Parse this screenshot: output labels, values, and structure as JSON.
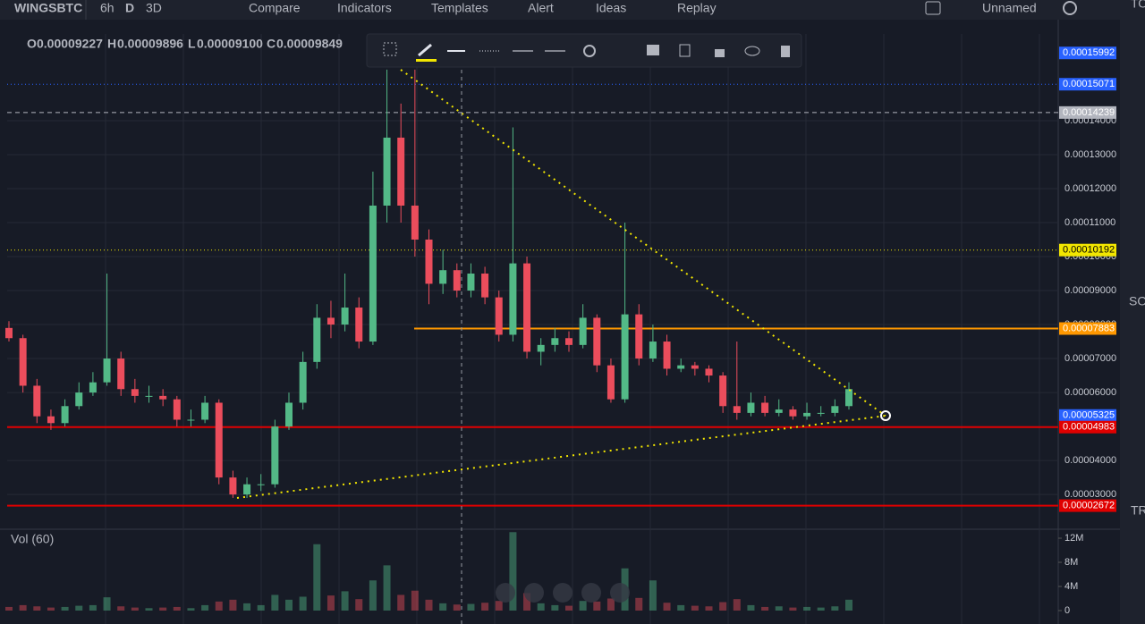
{
  "toolbar": {
    "symbol": "WINGSBTC",
    "intervals": [
      "6h",
      "D",
      "3D"
    ],
    "buttons": [
      "Compare",
      "Indicators",
      "Templates",
      "Alert",
      "Ideas",
      "Replay"
    ],
    "layout_name": "Unnamed"
  },
  "legend": {
    "items": [
      {
        "key": "O",
        "value": "0.00009227"
      },
      {
        "key": "H",
        "value": "0.00009896"
      },
      {
        "key": "L",
        "value": "0.00009100"
      },
      {
        "key": "C",
        "value": "0.00009849"
      }
    ]
  },
  "chart": {
    "type": "candlestick",
    "up_color": "#53b987",
    "down_color": "#eb4d5c",
    "grid": true,
    "ylim": [
      2.03e-05,
      0.0001655
    ],
    "yticks": [
      {
        "value": 3e-05,
        "label": "0.00003000"
      },
      {
        "value": 4e-05,
        "label": "0.00004000"
      },
      {
        "value": 5e-05,
        "label": "0.00005000"
      },
      {
        "value": 6e-05,
        "label": "0.00006000"
      },
      {
        "value": 7e-05,
        "label": "0.00007000"
      },
      {
        "value": 8e-05,
        "label": "0.00008000"
      },
      {
        "value": 9e-05,
        "label": "0.00009000"
      },
      {
        "value": 0.0001,
        "label": "0.00010000"
      },
      {
        "value": 0.00011,
        "label": "0.00011000"
      },
      {
        "value": 0.00012,
        "label": "0.00012000"
      },
      {
        "value": 0.00013,
        "label": "0.00013000"
      },
      {
        "value": 0.00014,
        "label": "0.00014000"
      }
    ],
    "price_lines": [
      {
        "value": 0.00015992,
        "label": "0.00015992",
        "color": "#2962ff",
        "style": "none"
      },
      {
        "value": 0.00015071,
        "label": "0.00015071",
        "color": "#2962ff",
        "style": "dotted"
      },
      {
        "value": 0.00014239,
        "label": "0.00014239",
        "color": "#b2b5be",
        "style": "dashed"
      },
      {
        "value": 0.00010192,
        "label": "0.00010192",
        "color": "#f2e600",
        "style": "dotted"
      },
      {
        "value": 7.883e-05,
        "label": "0.00007883",
        "color": "#ff9800",
        "style": "solid"
      },
      {
        "value": 5.325e-05,
        "label": "0.00005325",
        "color": "#2962ff",
        "style": "none"
      },
      {
        "value": 4.983e-05,
        "label": "0.00004983",
        "color": "#e00000",
        "style": "solid"
      },
      {
        "value": 2.672e-05,
        "label": "0.00002672",
        "color": "#e00000",
        "style": "solid"
      }
    ],
    "candles": [
      [
        7.9e-05,
        8.1e-05,
        7.5e-05,
        7.6e-05
      ],
      [
        7.6e-05,
        7.7e-05,
        6e-05,
        6.2e-05
      ],
      [
        6.2e-05,
        6.4e-05,
        5.1e-05,
        5.3e-05
      ],
      [
        5.3e-05,
        5.5e-05,
        4.9e-05,
        5.1e-05
      ],
      [
        5.1e-05,
        5.8e-05,
        5e-05,
        5.6e-05
      ],
      [
        5.6e-05,
        6.3e-05,
        5.5e-05,
        6e-05
      ],
      [
        6e-05,
        6.6e-05,
        5.9e-05,
        6.3e-05
      ],
      [
        6.3e-05,
        9.5e-05,
        6.2e-05,
        7e-05
      ],
      [
        7e-05,
        7.2e-05,
        5.9e-05,
        6.1e-05
      ],
      [
        6.1e-05,
        6.4e-05,
        5.7e-05,
        5.9e-05
      ],
      [
        5.9e-05,
        6.2e-05,
        5.7e-05,
        5.9e-05
      ],
      [
        5.9e-05,
        6.1e-05,
        5.6e-05,
        5.8e-05
      ],
      [
        5.8e-05,
        5.9e-05,
        5e-05,
        5.2e-05
      ],
      [
        5.2e-05,
        5.5e-05,
        5e-05,
        5.2e-05
      ],
      [
        5.2e-05,
        5.9e-05,
        5.1e-05,
        5.7e-05
      ],
      [
        5.7e-05,
        5.8e-05,
        3.3e-05,
        3.5e-05
      ],
      [
        3.5e-05,
        3.7e-05,
        2.9e-05,
        3e-05
      ],
      [
        3e-05,
        3.5e-05,
        2.9e-05,
        3.3e-05
      ],
      [
        3.3e-05,
        3.6e-05,
        3.1e-05,
        3.3e-05
      ],
      [
        3.3e-05,
        5.2e-05,
        3.2e-05,
        5e-05
      ],
      [
        5e-05,
        6e-05,
        4.9e-05,
        5.7e-05
      ],
      [
        5.7e-05,
        7.2e-05,
        5.5e-05,
        6.9e-05
      ],
      [
        6.9e-05,
        8.6e-05,
        6.7e-05,
        8.2e-05
      ],
      [
        8.2e-05,
        8.7e-05,
        7.6e-05,
        8e-05
      ],
      [
        8e-05,
        9.5e-05,
        7.8e-05,
        8.5e-05
      ],
      [
        8.5e-05,
        8.8e-05,
        7.3e-05,
        7.5e-05
      ],
      [
        7.5e-05,
        0.000125,
        7.4e-05,
        0.000115
      ],
      [
        0.000115,
        0.000155,
        0.00011,
        0.000135
      ],
      [
        0.000135,
        0.000145,
        0.00011,
        0.000115
      ],
      [
        0.000115,
        0.000155,
        0.0001,
        0.000105
      ],
      [
        0.000105,
        0.000108,
        8.6e-05,
        9.2e-05
      ],
      [
        9.2e-05,
        0.000102,
        8.9e-05,
        9.6e-05
      ],
      [
        9.6e-05,
        9.8e-05,
        8.8e-05,
        9e-05
      ],
      [
        9e-05,
        9.8e-05,
        8.8e-05,
        9.5e-05
      ],
      [
        9.5e-05,
        9.7e-05,
        8.6e-05,
        8.8e-05
      ],
      [
        8.8e-05,
        9e-05,
        7.5e-05,
        7.7e-05
      ],
      [
        7.7e-05,
        0.000138,
        7.5e-05,
        9.8e-05
      ],
      [
        9.8e-05,
        0.0001,
        7e-05,
        7.2e-05
      ],
      [
        7.2e-05,
        7.6e-05,
        6.8e-05,
        7.4e-05
      ],
      [
        7.4e-05,
        7.9e-05,
        7.2e-05,
        7.6e-05
      ],
      [
        7.6e-05,
        7.8e-05,
        7.2e-05,
        7.4e-05
      ],
      [
        7.4e-05,
        8.6e-05,
        7.3e-05,
        8.2e-05
      ],
      [
        8.2e-05,
        8.3e-05,
        6.6e-05,
        6.8e-05
      ],
      [
        6.8e-05,
        7e-05,
        5.7e-05,
        5.8e-05
      ],
      [
        5.8e-05,
        0.00011,
        5.7e-05,
        8.3e-05
      ],
      [
        8.3e-05,
        8.6e-05,
        6.8e-05,
        7e-05
      ],
      [
        7e-05,
        8e-05,
        6.9e-05,
        7.5e-05
      ],
      [
        7.5e-05,
        7.7e-05,
        6.5e-05,
        6.7e-05
      ],
      [
        6.7e-05,
        7e-05,
        6.6e-05,
        6.8e-05
      ],
      [
        6.8e-05,
        6.9e-05,
        6.5e-05,
        6.7e-05
      ],
      [
        6.7e-05,
        6.8e-05,
        6.3e-05,
        6.5e-05
      ],
      [
        6.5e-05,
        6.6e-05,
        5.4e-05,
        5.6e-05
      ],
      [
        5.6e-05,
        7.5e-05,
        5.2e-05,
        5.4e-05
      ],
      [
        5.4e-05,
        6e-05,
        5.3e-05,
        5.7e-05
      ],
      [
        5.7e-05,
        5.9e-05,
        5.3e-05,
        5.4e-05
      ],
      [
        5.4e-05,
        5.8e-05,
        5.3e-05,
        5.5e-05
      ],
      [
        5.5e-05,
        5.6e-05,
        5.2e-05,
        5.3e-05
      ],
      [
        5.3e-05,
        5.7e-05,
        5.2e-05,
        5.4e-05
      ],
      [
        5.4e-05,
        5.6e-05,
        5.3e-05,
        5.4e-05
      ],
      [
        5.4e-05,
        5.8e-05,
        5.3e-05,
        5.6e-05
      ],
      [
        5.6e-05,
        6.3e-05,
        5.5e-05,
        6.1e-05
      ]
    ]
  },
  "volume": {
    "label": "Vol (60)",
    "ylim": [
      -1040000,
      13040000
    ],
    "yticks": [
      {
        "value": 12000000,
        "label": "12M"
      },
      {
        "value": 8000000,
        "label": "8M"
      },
      {
        "value": 4000000,
        "label": "4M"
      },
      0
    ],
    "values": [
      600000,
      900000,
      700000,
      500000,
      600000,
      800000,
      900000,
      2200000,
      700000,
      500000,
      400000,
      500000,
      600000,
      400000,
      900000,
      1500000,
      1800000,
      1200000,
      900000,
      2600000,
      1800000,
      2300000,
      11000000,
      2500000,
      3200000,
      1900000,
      5000000,
      7500000,
      2600000,
      3300000,
      1800000,
      1200000,
      1000000,
      1100000,
      1300000,
      1600000,
      13000000,
      2900000,
      1200000,
      900000,
      800000,
      1600000,
      1500000,
      2000000,
      7000000,
      2100000,
      5000000,
      1300000,
      900000,
      800000,
      700000,
      1400000,
      1900000,
      900000,
      600000,
      700000,
      500000,
      600000,
      500000,
      700000,
      1800000
    ]
  },
  "sidebar": [
    "TOO",
    "SOC",
    "TRA"
  ]
}
